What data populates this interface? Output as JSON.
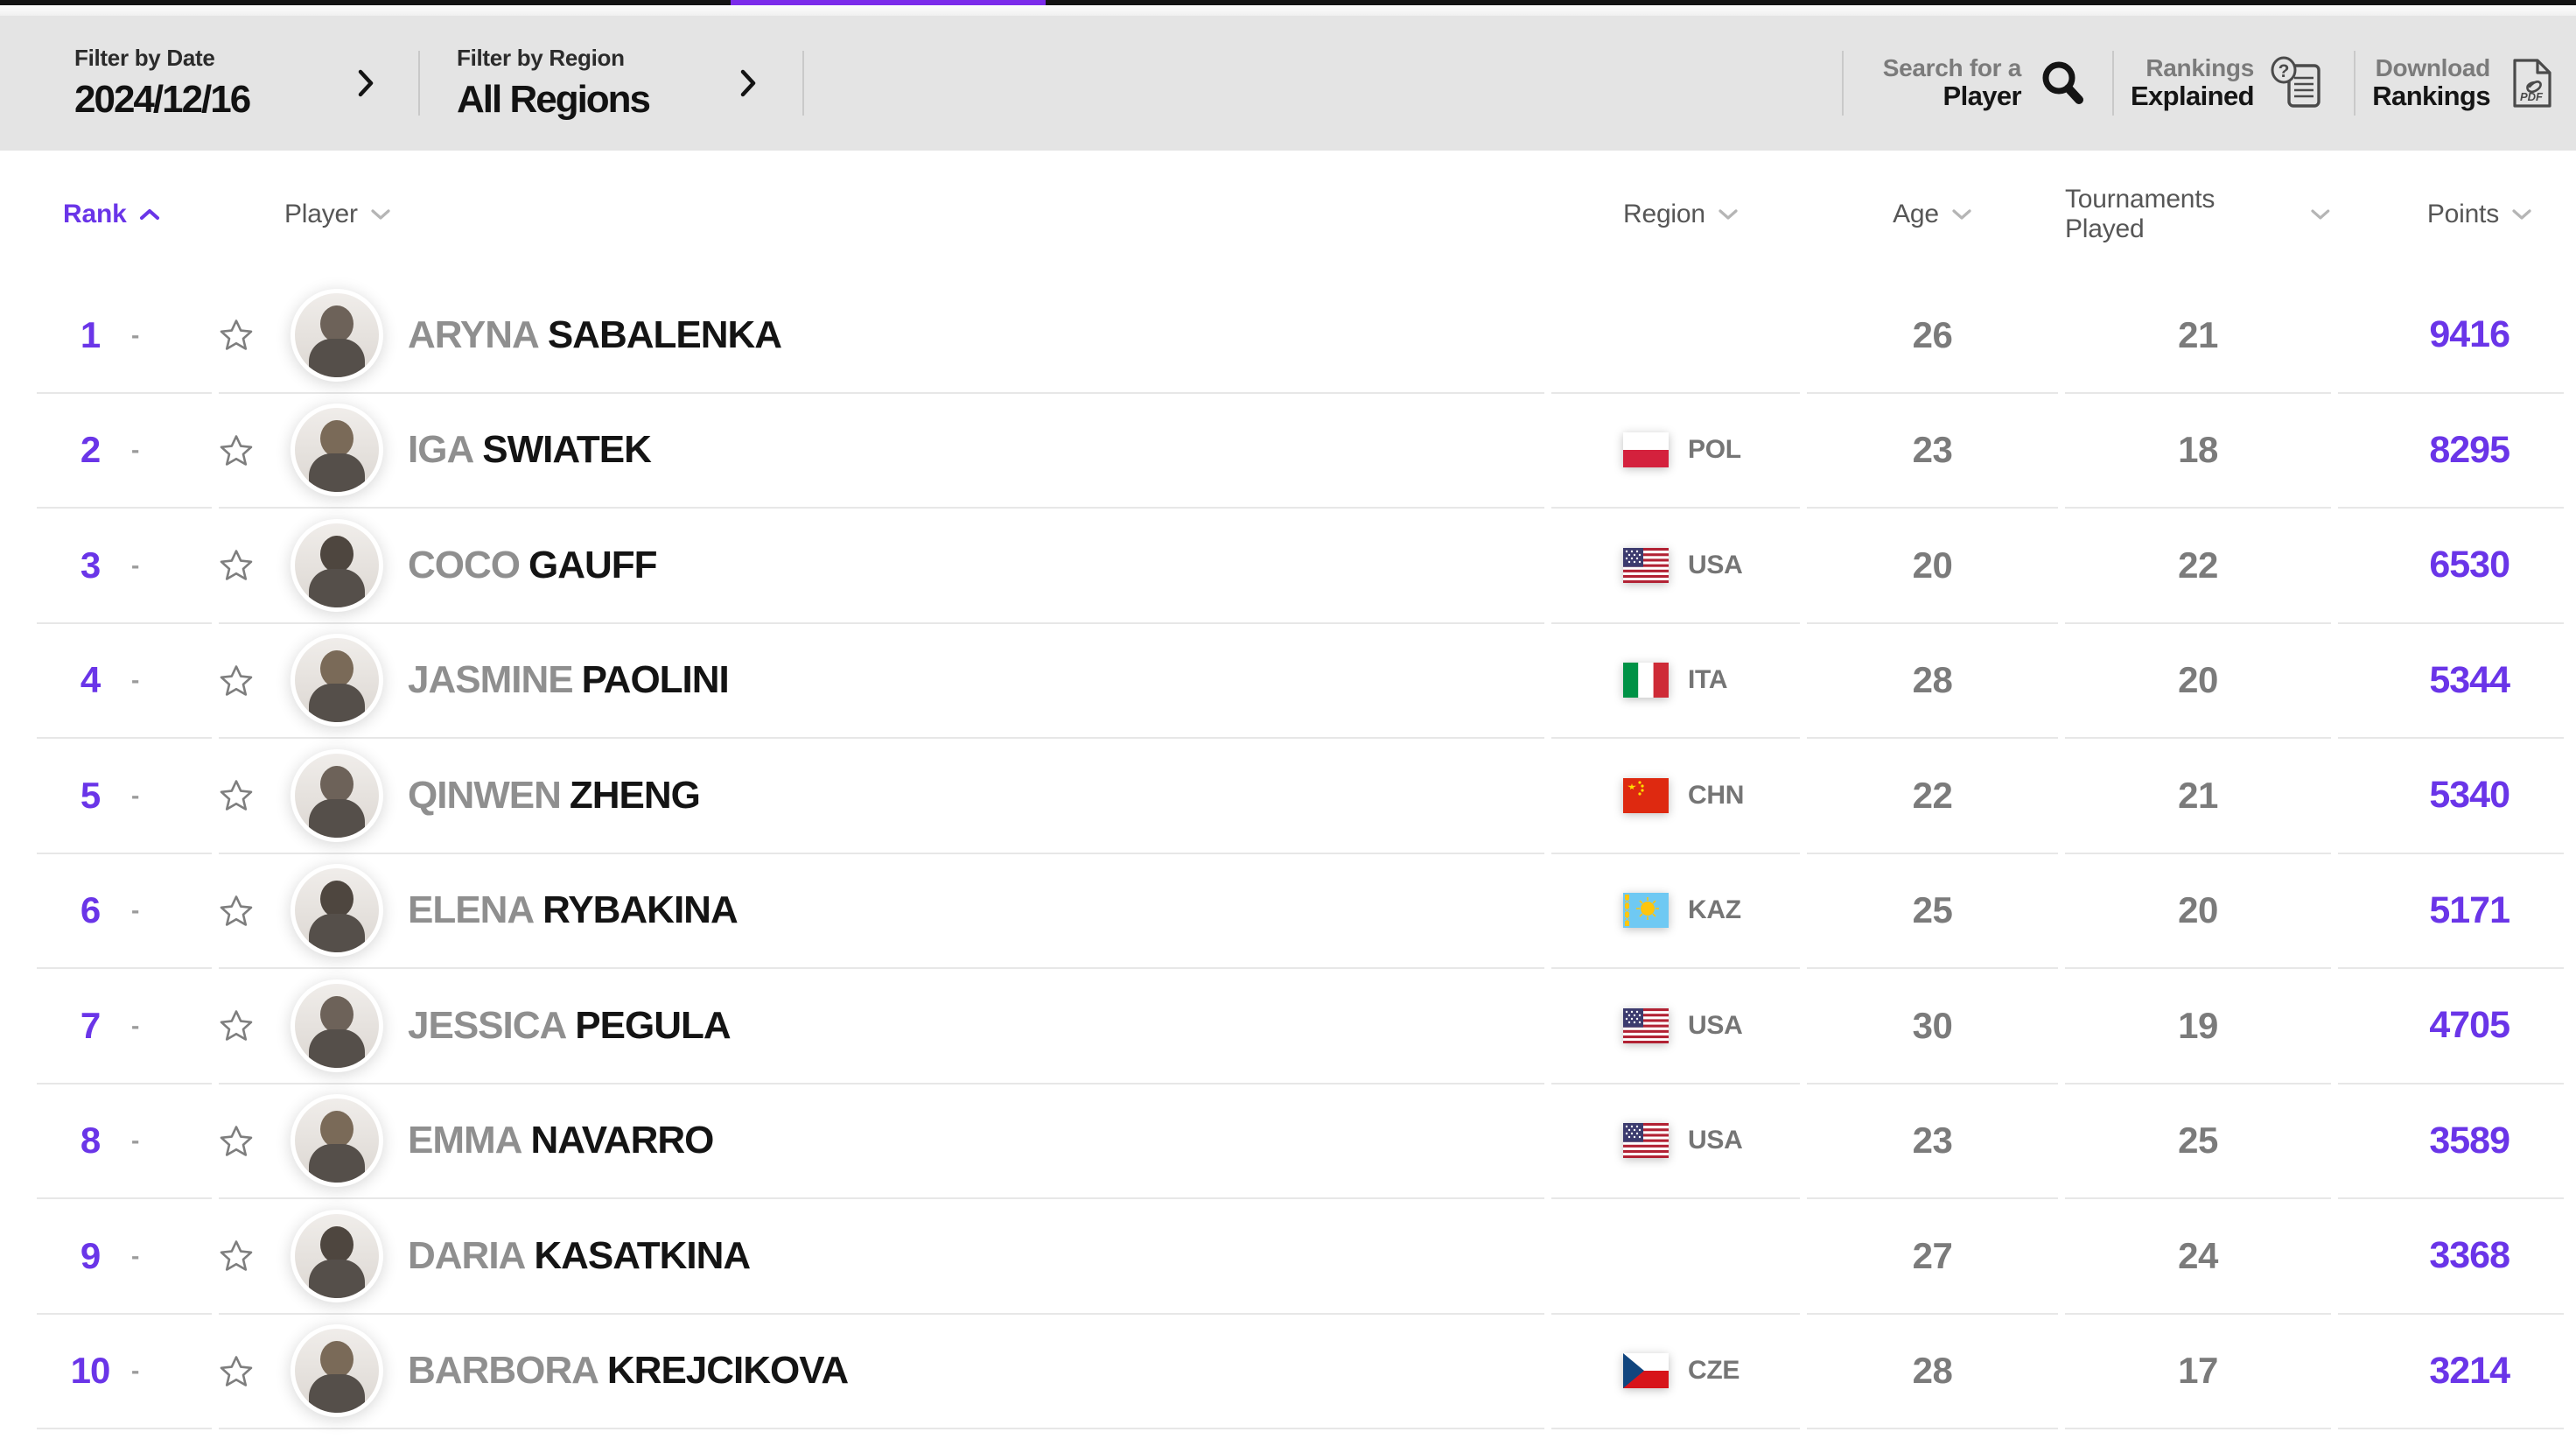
{
  "colors": {
    "accent": "#6a35e8",
    "progress_bar": "#7b2bea",
    "filter_bar_bg": "#e4e4e4"
  },
  "filter_bar": {
    "filters": [
      {
        "label": "Filter by Date",
        "value": "2024/12/16"
      },
      {
        "label": "Filter by Region",
        "value": "All Regions"
      }
    ],
    "actions": [
      {
        "line1": "Search for a",
        "line2": "Player",
        "icon": "search-icon"
      },
      {
        "line1": "Rankings",
        "line2": "Explained",
        "icon": "rankings-explained-icon"
      },
      {
        "line1": "Download",
        "line2": "Rankings",
        "icon": "pdf-download-icon"
      }
    ]
  },
  "table": {
    "headers": {
      "rank": "Rank",
      "player": "Player",
      "region": "Region",
      "age": "Age",
      "tournaments": "Tournaments Played",
      "points": "Points"
    },
    "sort": {
      "column": "Rank",
      "direction": "ascending"
    },
    "rows": [
      {
        "rank": "1",
        "movement": "-",
        "first": "ARYNA",
        "last": "SABALENKA",
        "region": "",
        "flag": "",
        "age": "26",
        "tournaments": "21",
        "points": "9416"
      },
      {
        "rank": "2",
        "movement": "-",
        "first": "IGA",
        "last": "SWIATEK",
        "region": "POL",
        "flag": "pol",
        "age": "23",
        "tournaments": "18",
        "points": "8295"
      },
      {
        "rank": "3",
        "movement": "-",
        "first": "COCO",
        "last": "GAUFF",
        "region": "USA",
        "flag": "usa",
        "age": "20",
        "tournaments": "22",
        "points": "6530"
      },
      {
        "rank": "4",
        "movement": "-",
        "first": "JASMINE",
        "last": "PAOLINI",
        "region": "ITA",
        "flag": "ita",
        "age": "28",
        "tournaments": "20",
        "points": "5344"
      },
      {
        "rank": "5",
        "movement": "-",
        "first": "QINWEN",
        "last": "ZHENG",
        "region": "CHN",
        "flag": "chn",
        "age": "22",
        "tournaments": "21",
        "points": "5340"
      },
      {
        "rank": "6",
        "movement": "-",
        "first": "ELENA",
        "last": "RYBAKINA",
        "region": "KAZ",
        "flag": "kaz",
        "age": "25",
        "tournaments": "20",
        "points": "5171"
      },
      {
        "rank": "7",
        "movement": "-",
        "first": "JESSICA",
        "last": "PEGULA",
        "region": "USA",
        "flag": "usa",
        "age": "30",
        "tournaments": "19",
        "points": "4705"
      },
      {
        "rank": "8",
        "movement": "-",
        "first": "EMMA",
        "last": "NAVARRO",
        "region": "USA",
        "flag": "usa",
        "age": "23",
        "tournaments": "25",
        "points": "3589"
      },
      {
        "rank": "9",
        "movement": "-",
        "first": "DARIA",
        "last": "KASATKINA",
        "region": "",
        "flag": "",
        "age": "27",
        "tournaments": "24",
        "points": "3368"
      },
      {
        "rank": "10",
        "movement": "-",
        "first": "BARBORA",
        "last": "KREJCIKOVA",
        "region": "CZE",
        "flag": "cze",
        "age": "28",
        "tournaments": "17",
        "points": "3214"
      }
    ]
  }
}
